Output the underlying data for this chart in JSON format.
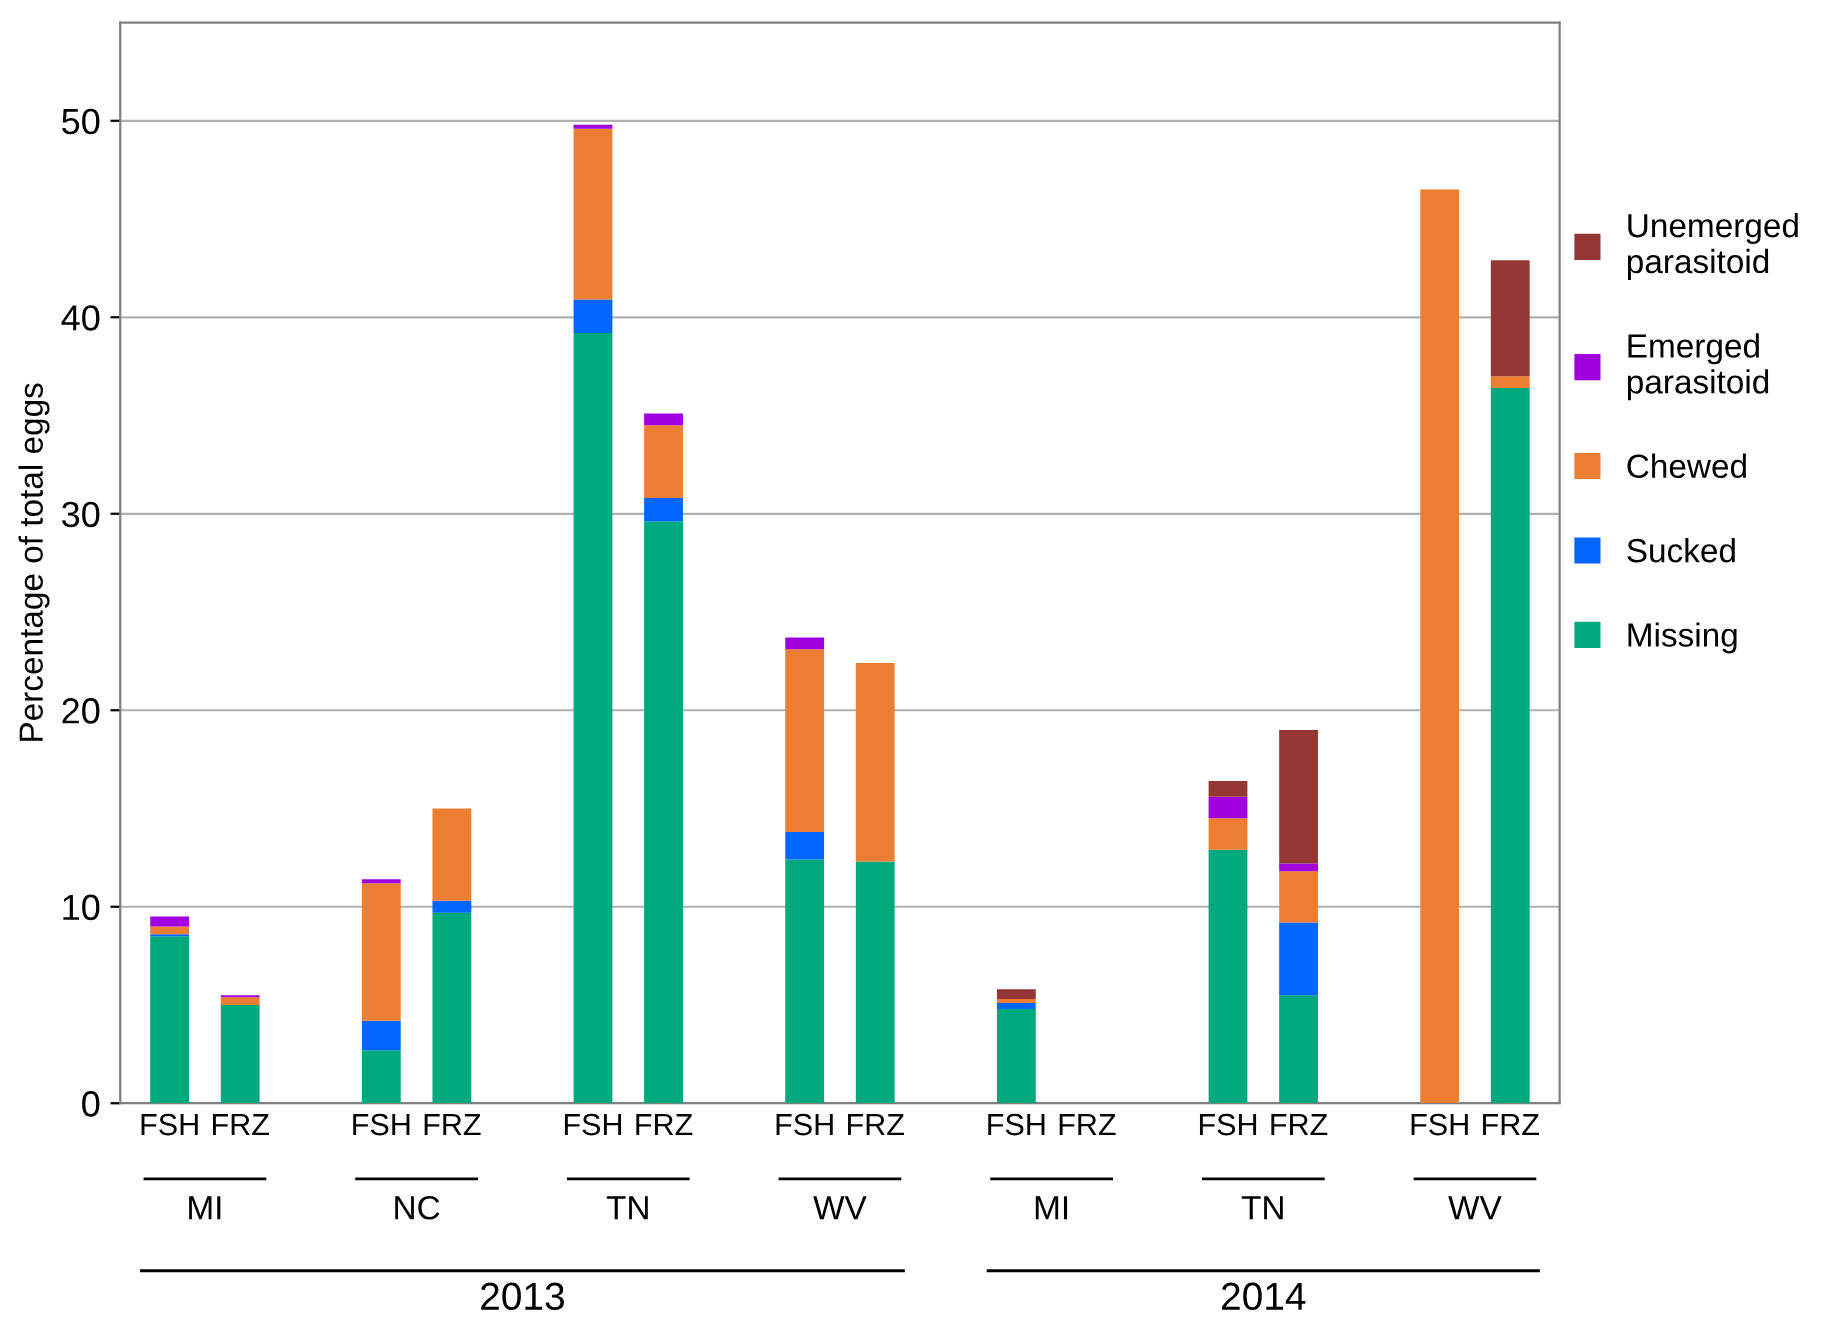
{
  "chart_data": {
    "type": "bar",
    "stacked": true,
    "categories": [
      "FSH",
      "FRZ",
      "FSH",
      "FRZ",
      "FSH",
      "FRZ",
      "FSH",
      "FRZ",
      "FSH",
      "FRZ",
      "FSH",
      "FRZ",
      "FSH",
      "FRZ"
    ],
    "series": [
      {
        "name": "Missing",
        "color": "#00a87e",
        "values": [
          8.5,
          5.0,
          2.7,
          9.7,
          39.2,
          29.6,
          12.4,
          12.3,
          4.8,
          0,
          12.9,
          5.5,
          0,
          36.4
        ]
      },
      {
        "name": "Sucked",
        "color": "#0066ff",
        "values": [
          0.1,
          0,
          1.5,
          0.6,
          1.7,
          1.2,
          1.4,
          0,
          0.3,
          0,
          0,
          3.7,
          0,
          0
        ]
      },
      {
        "name": "Chewed",
        "color": "#ed7d31",
        "values": [
          0.4,
          0.4,
          7.0,
          4.7,
          8.7,
          3.7,
          9.3,
          10.1,
          0.2,
          0,
          1.6,
          2.6,
          46.5,
          0.6
        ]
      },
      {
        "name": "Emerged parasitoid",
        "color": "#a000e0",
        "values": [
          0.5,
          0.1,
          0.2,
          0,
          0.2,
          0.6,
          0.6,
          0,
          0,
          0,
          1.1,
          0.4,
          0,
          0
        ]
      },
      {
        "name": "Unemerged parasitoid",
        "color": "#943634",
        "values": [
          0,
          0,
          0,
          0,
          0,
          0,
          0,
          0,
          0.5,
          0,
          0.8,
          6.8,
          0,
          5.9
        ]
      }
    ],
    "ylabel": "Percentage of total eggs",
    "ylim": [
      0,
      55
    ],
    "yticks": [
      0,
      10,
      20,
      30,
      40,
      50
    ],
    "grid": "y",
    "legend": "right",
    "annotations": [
      "MI",
      "NC",
      "TN",
      "WV",
      "MI",
      "TN",
      "WV",
      "2013",
      "2014"
    ]
  }
}
